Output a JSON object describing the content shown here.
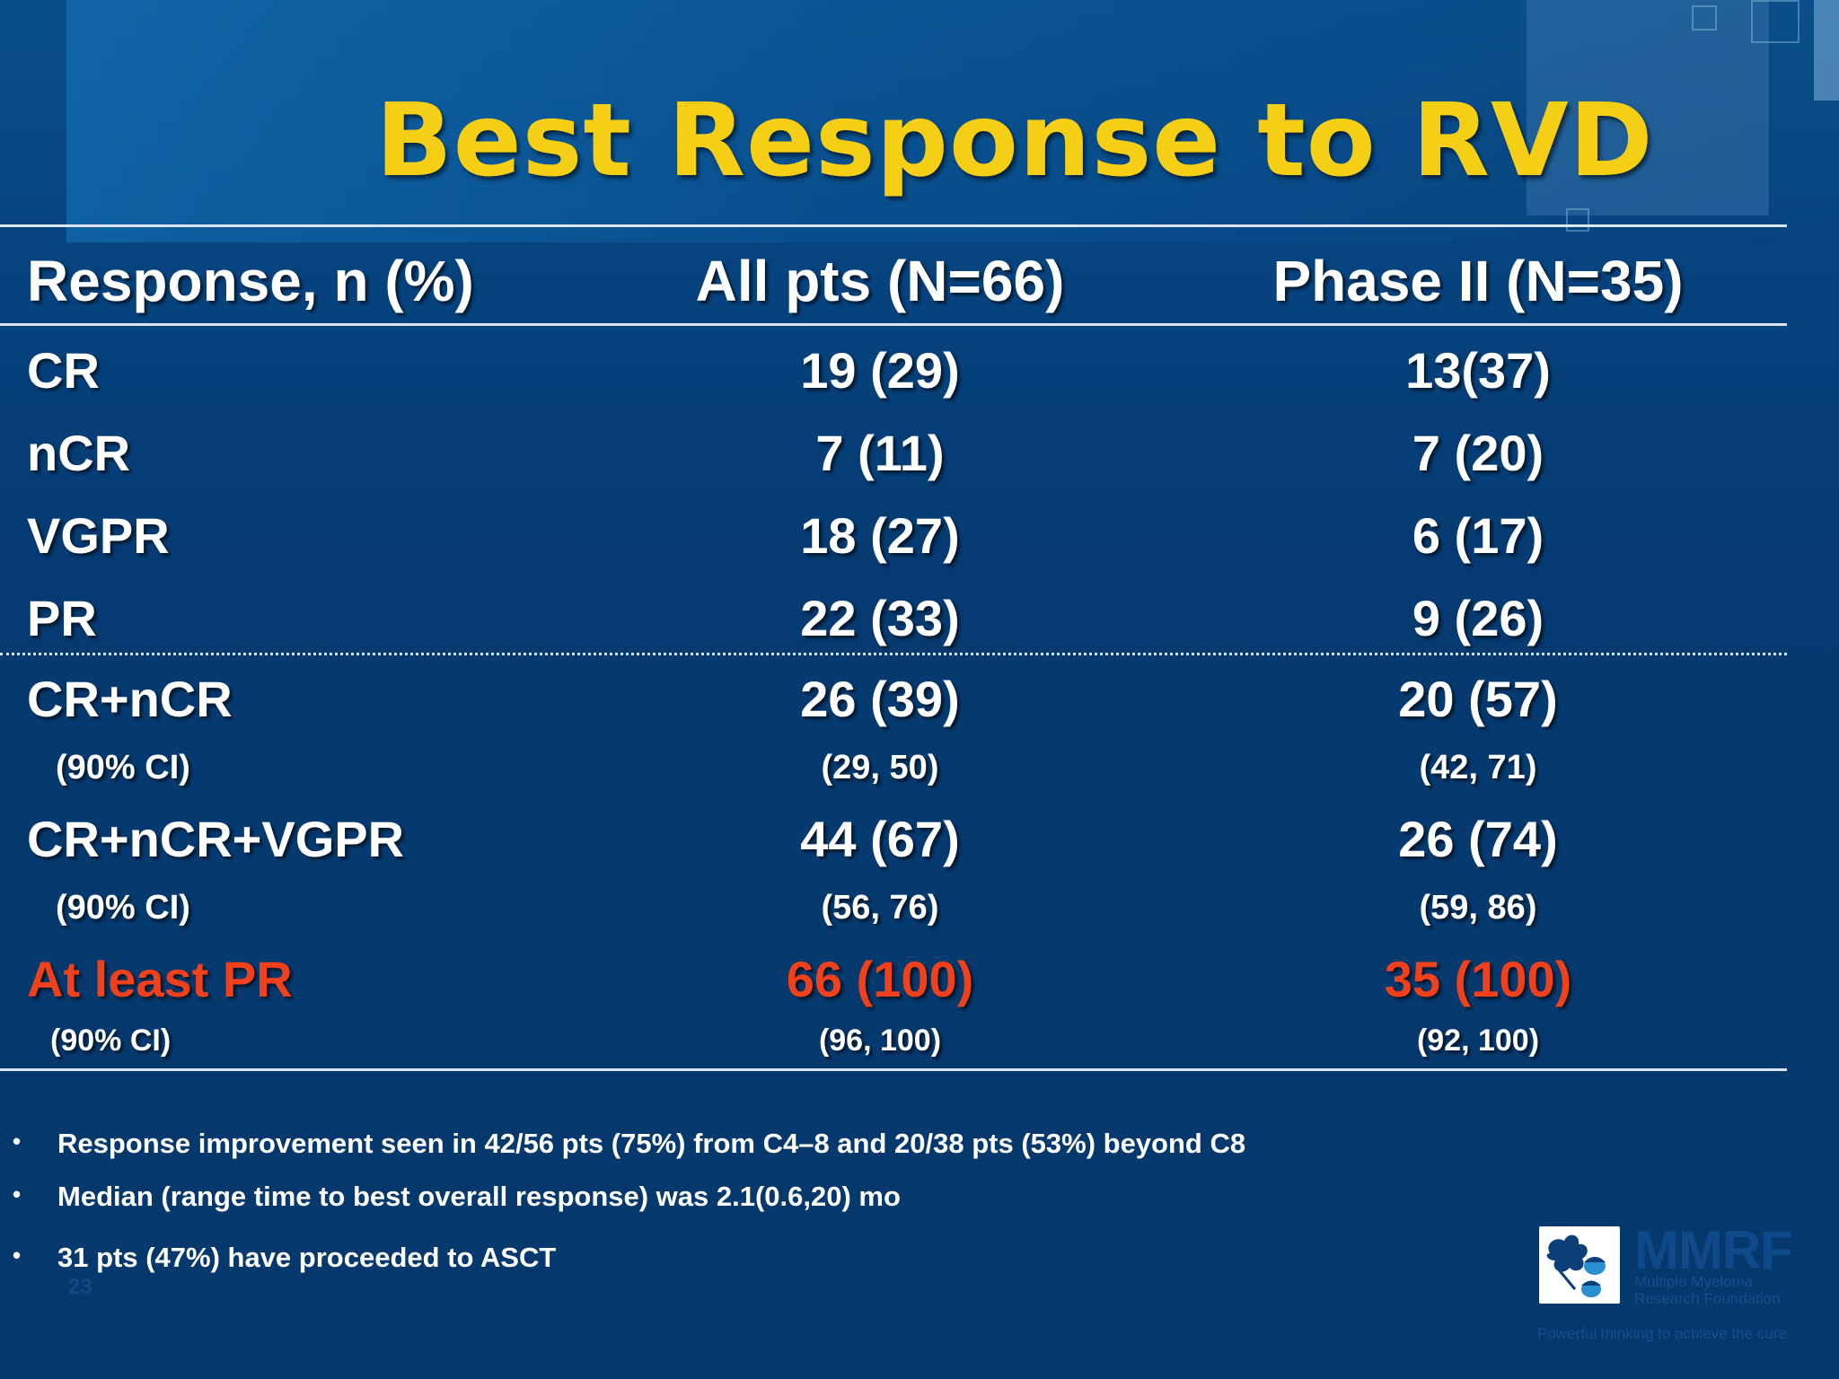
{
  "slide": {
    "title": "Best Response to RVD",
    "page_number": "23"
  },
  "table": {
    "headers": [
      "Response, n (%)",
      "All pts (N=66)",
      "Phase II (N=35)"
    ],
    "rows": [
      {
        "label": "CR",
        "all": "19 (29)",
        "phase2": "13(37)"
      },
      {
        "label": "nCR",
        "all": "7 (11)",
        "phase2": "7 (20)"
      },
      {
        "label": "VGPR",
        "all": "18 (27)",
        "phase2": "6 (17)"
      },
      {
        "label": "PR",
        "all": "22 (33)",
        "phase2": "9 (26)"
      }
    ],
    "summary": [
      {
        "label": "CR+nCR",
        "all": "26 (39)",
        "phase2": "20 (57)",
        "ci_label": "(90% CI)",
        "ci_all": "(29, 50)",
        "ci_phase2": "(42, 71)"
      },
      {
        "label": "CR+nCR+VGPR",
        "all": "44 (67)",
        "phase2": "26 (74)",
        "ci_label": "(90% CI)",
        "ci_all": "(56, 76)",
        "ci_phase2": "(59, 86)"
      },
      {
        "label": "At least PR",
        "all": "66 (100)",
        "phase2": "35 (100)",
        "ci_label": "(90% CI)",
        "ci_all": "(96, 100)",
        "ci_phase2": "(92, 100)",
        "highlight_color": "#f0411c"
      }
    ]
  },
  "bullets": [
    "Response improvement seen in 42/56 pts (75%) from C4–8 and 20/38 pts (53%) beyond C8",
    "Median (range time to best overall response) was  2.1(0.6,20) mo",
    "31 pts (47%) have proceeded to ASCT"
  ],
  "logo": {
    "name": "MMRF",
    "subtitle_line1": "Multiple Myeloma",
    "subtitle_line2": "Research Foundation",
    "tagline": "Powerful thinking to achieve the cure"
  },
  "colors": {
    "background": "#063b70",
    "title": "#f4cf16",
    "highlight": "#f0411c"
  }
}
